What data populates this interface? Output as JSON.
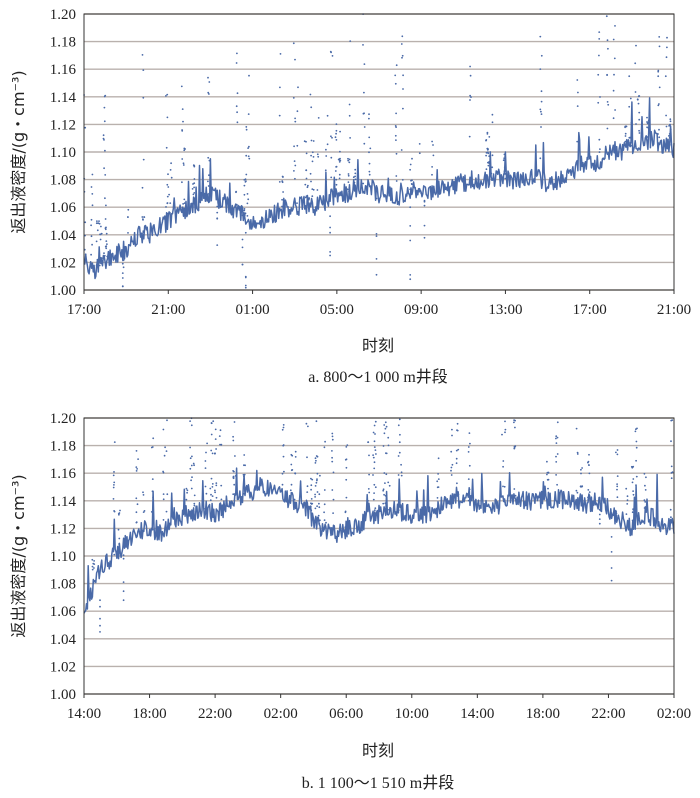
{
  "charts": [
    {
      "id": "a",
      "caption": "a. 800～1 000 m井段",
      "xlabel": "时刻",
      "ylabel": "返出液密度/(g・cm⁻³)",
      "yticks": [
        "1.00",
        "1.02",
        "1.04",
        "1.06",
        "1.08",
        "1.10",
        "1.12",
        "1.14",
        "1.16",
        "1.18",
        "1.20"
      ],
      "xticks": [
        "17:00",
        "21:00",
        "01:00",
        "05:00",
        "09:00",
        "13:00",
        "17:00",
        "21:00"
      ]
    },
    {
      "id": "b",
      "caption": "b. 1 100～1 510 m井段",
      "xlabel": "时刻",
      "ylabel": "返出液密度/(g・cm⁻³)",
      "yticks": [
        "1.00",
        "1.02",
        "1.04",
        "1.06",
        "1.08",
        "1.10",
        "1.12",
        "1.14",
        "1.16",
        "1.18",
        "1.20"
      ],
      "xticks": [
        "14:00",
        "18:00",
        "22:00",
        "02:00",
        "06:00",
        "10:00",
        "14:00",
        "18:00",
        "22:00",
        "02:00"
      ]
    }
  ],
  "chart_data": [
    {
      "type": "scatter",
      "title": "a. 800～1 000 m井段",
      "xlabel": "时刻",
      "ylabel": "返出液密度/(g・cm⁻³)",
      "ylim": [
        1.0,
        1.2
      ],
      "x_unit": "hours since 17:00",
      "xlim": [
        0,
        28
      ],
      "grid": true,
      "series": [
        {
          "x": [
            0.0,
            0.5,
            1.0,
            1.5,
            2.0,
            2.5,
            3.0,
            3.5,
            4.0,
            4.5,
            5.0,
            5.5,
            6.0,
            6.5,
            7.0,
            7.5,
            8.0,
            8.5,
            9.0,
            9.5,
            10.0,
            10.5,
            11.0,
            11.5,
            12.0,
            12.5,
            13.0,
            13.5,
            14.0,
            14.5,
            15.0,
            15.5,
            16.0,
            16.5,
            17.0,
            17.5,
            18.0,
            18.5,
            19.0,
            19.5,
            20.0,
            20.5,
            21.0,
            21.5,
            22.0,
            22.5,
            23.0,
            23.5,
            24.0,
            24.5,
            25.0,
            25.5,
            26.0,
            26.5,
            27.0,
            27.5,
            28.0
          ],
          "y": [
            1.02,
            1.015,
            1.02,
            1.025,
            1.03,
            1.04,
            1.04,
            1.045,
            1.05,
            1.055,
            1.06,
            1.065,
            1.07,
            1.065,
            1.06,
            1.055,
            1.05,
            1.05,
            1.055,
            1.06,
            1.06,
            1.062,
            1.06,
            1.065,
            1.07,
            1.07,
            1.072,
            1.075,
            1.07,
            1.068,
            1.068,
            1.07,
            1.07,
            1.072,
            1.075,
            1.075,
            1.078,
            1.08,
            1.08,
            1.082,
            1.08,
            1.08,
            1.082,
            1.085,
            1.075,
            1.08,
            1.085,
            1.09,
            1.09,
            1.095,
            1.1,
            1.1,
            1.105,
            1.105,
            1.11,
            1.105,
            1.1
          ]
        }
      ]
    },
    {
      "type": "scatter",
      "title": "b. 1 100～1 510 m井段",
      "xlabel": "时刻",
      "ylabel": "返出液密度/(g・cm⁻³)",
      "ylim": [
        1.0,
        1.2
      ],
      "x_unit": "hours since 14:00",
      "xlim": [
        0,
        40
      ],
      "grid": true,
      "series": [
        {
          "x": [
            0,
            1,
            2,
            3,
            4,
            5,
            6,
            7,
            8,
            9,
            10,
            11,
            12,
            13,
            14,
            15,
            16,
            17,
            18,
            19,
            20,
            21,
            22,
            23,
            24,
            25,
            26,
            27,
            28,
            29,
            30,
            31,
            32,
            33,
            34,
            35,
            36,
            37,
            38,
            39,
            40
          ],
          "y": [
            1.06,
            1.09,
            1.1,
            1.11,
            1.12,
            1.115,
            1.125,
            1.13,
            1.135,
            1.13,
            1.14,
            1.145,
            1.15,
            1.15,
            1.14,
            1.135,
            1.12,
            1.115,
            1.12,
            1.125,
            1.13,
            1.135,
            1.13,
            1.13,
            1.135,
            1.14,
            1.14,
            1.138,
            1.135,
            1.14,
            1.14,
            1.14,
            1.142,
            1.14,
            1.138,
            1.14,
            1.13,
            1.12,
            1.13,
            1.125,
            1.12
          ]
        }
      ]
    }
  ]
}
